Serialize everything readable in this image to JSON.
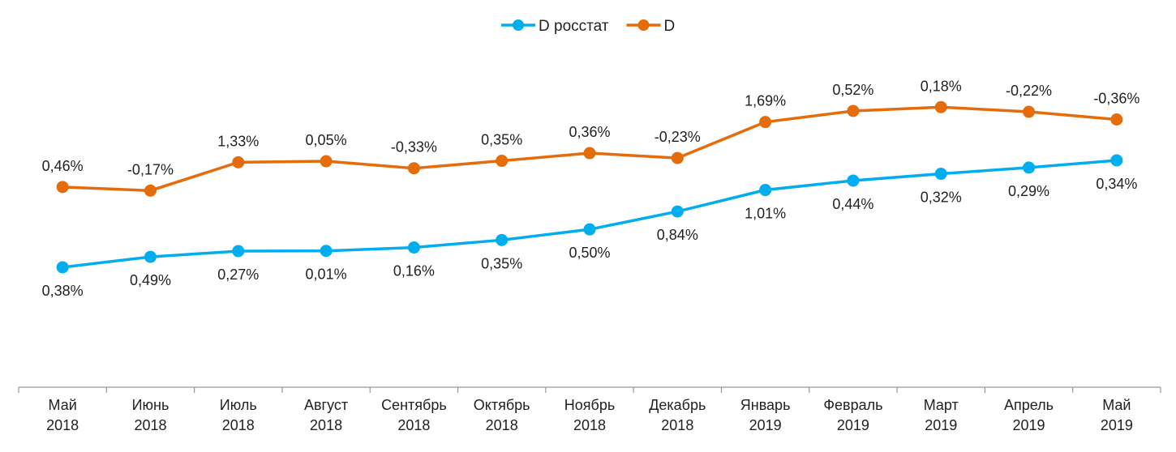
{
  "chart_data": {
    "type": "line",
    "title": "",
    "xlabel": "",
    "ylabel": "",
    "grid": false,
    "legend_position": "top-center",
    "categories": [
      [
        "Май",
        "2018"
      ],
      [
        "Июнь",
        "2018"
      ],
      [
        "Июль",
        "2018"
      ],
      [
        "Август",
        "2018"
      ],
      [
        "Сентябрь",
        "2018"
      ],
      [
        "Октябрь",
        "2018"
      ],
      [
        "Ноябрь",
        "2018"
      ],
      [
        "Декабрь",
        "2018"
      ],
      [
        "Январь",
        "2019"
      ],
      [
        "Февраль",
        "2019"
      ],
      [
        "Март",
        "2019"
      ],
      [
        "Апрель",
        "2019"
      ],
      [
        "Май",
        "2019"
      ]
    ],
    "plotted_as": "cumulative sum of monthly values",
    "series": [
      {
        "name": "D росстат",
        "color": "#00AEEF",
        "label_position": "below",
        "values": [
          0.38,
          0.49,
          0.27,
          0.01,
          0.16,
          0.35,
          0.5,
          0.84,
          1.01,
          0.44,
          0.32,
          0.29,
          0.34
        ],
        "labels": [
          "0,38%",
          "0,49%",
          "0,27%",
          "0,01%",
          "0,16%",
          "0,35%",
          "0,50%",
          "0,84%",
          "1,01%",
          "0,44%",
          "0,32%",
          "0,29%",
          "0,34%"
        ],
        "ylim": [
          -5.25,
          12.93
        ]
      },
      {
        "name": "D",
        "color": "#E46C0A",
        "label_position": "above",
        "values": [
          0.46,
          -0.17,
          1.33,
          0.05,
          -0.33,
          0.35,
          0.36,
          -0.23,
          1.69,
          0.52,
          0.18,
          -0.22,
          -0.36
        ],
        "labels": [
          "0,46%",
          "-0,17%",
          "1,33%",
          "0,05%",
          "-0,33%",
          "0,35%",
          "0,36%",
          "-0,23%",
          "1,69%",
          "0,52%",
          "0,18%",
          "-0,22%",
          "-0,36%"
        ],
        "ylim": [
          -8.94,
          9.24
        ]
      }
    ]
  }
}
